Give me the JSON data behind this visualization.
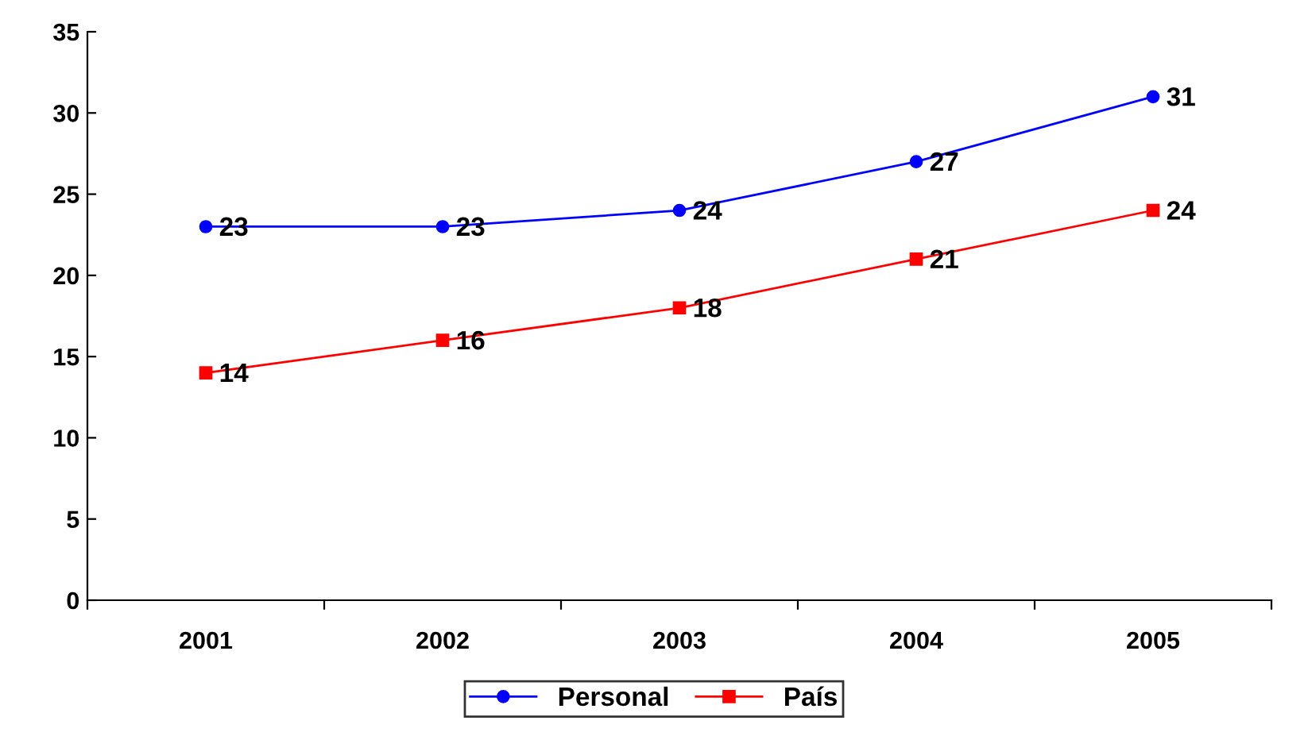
{
  "chart_data": {
    "type": "line",
    "categories": [
      "2001",
      "2002",
      "2003",
      "2004",
      "2005"
    ],
    "series": [
      {
        "name": "Personal",
        "color": "#0000ff",
        "marker": "circle",
        "values": [
          23,
          23,
          24,
          27,
          31
        ]
      },
      {
        "name": "País",
        "color": "#ff0000",
        "marker": "square",
        "values": [
          14,
          16,
          18,
          21,
          24
        ]
      }
    ],
    "ylim": [
      0,
      35
    ],
    "yticks": [
      0,
      5,
      10,
      15,
      20,
      25,
      30,
      35
    ],
    "data_labels": true,
    "grid": false,
    "legend": "bottom",
    "line_style": "solid"
  }
}
